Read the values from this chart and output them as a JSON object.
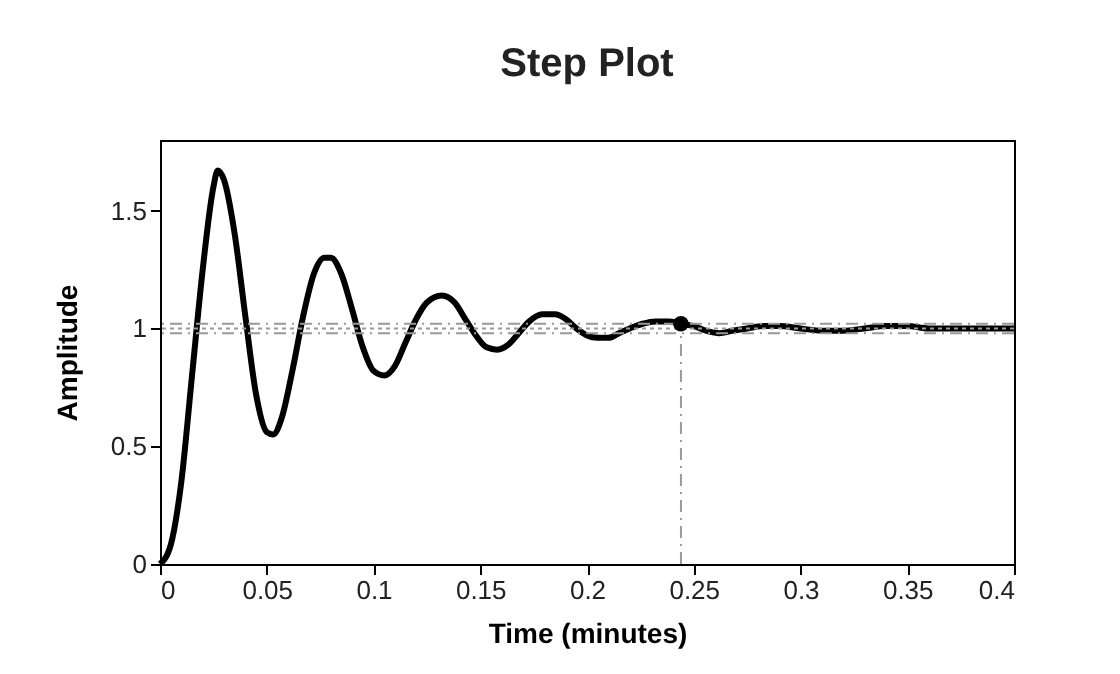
{
  "chart_data": {
    "type": "line",
    "title": "Step Plot",
    "xlabel": "Time (minutes)",
    "ylabel": "Amplitude",
    "xlim": [
      0,
      0.4
    ],
    "xticks": [
      0,
      0.05,
      0.1,
      0.15,
      0.2,
      0.25,
      0.3,
      0.35,
      0.4
    ],
    "ylim": [
      0,
      1.8
    ],
    "yticks": [
      0,
      0.5,
      1,
      1.5
    ],
    "grid": false,
    "series": [
      {
        "color": "#000000",
        "line_style": "solid",
        "marker": "none",
        "x": [
          0,
          0.005,
          0.01,
          0.015,
          0.02,
          0.025,
          0.027,
          0.03,
          0.035,
          0.04,
          0.045,
          0.05,
          0.053,
          0.057,
          0.062,
          0.067,
          0.072,
          0.077,
          0.08,
          0.085,
          0.09,
          0.095,
          0.1,
          0.105,
          0.11,
          0.115,
          0.12,
          0.125,
          0.132,
          0.138,
          0.143,
          0.148,
          0.153,
          0.158,
          0.163,
          0.168,
          0.173,
          0.179,
          0.185,
          0.19,
          0.195,
          0.2,
          0.205,
          0.21,
          0.215,
          0.22,
          0.226,
          0.232,
          0.238,
          0.244,
          0.25,
          0.256,
          0.262,
          0.268,
          0.275,
          0.283,
          0.29,
          0.3,
          0.31,
          0.32,
          0.33,
          0.34,
          0.35,
          0.36,
          0.37,
          0.38,
          0.39,
          0.4
        ],
        "values": [
          0,
          0.08,
          0.35,
          0.8,
          1.25,
          1.6,
          1.67,
          1.63,
          1.4,
          1.05,
          0.72,
          0.56,
          0.55,
          0.62,
          0.82,
          1.05,
          1.23,
          1.3,
          1.3,
          1.23,
          1.08,
          0.92,
          0.82,
          0.8,
          0.84,
          0.94,
          1.04,
          1.11,
          1.14,
          1.11,
          1.04,
          0.97,
          0.92,
          0.91,
          0.93,
          0.98,
          1.03,
          1.06,
          1.06,
          1.04,
          1.0,
          0.97,
          0.96,
          0.96,
          0.98,
          1.0,
          1.02,
          1.03,
          1.03,
          1.02,
          1.01,
          0.99,
          0.98,
          0.99,
          1.0,
          1.01,
          1.01,
          1.0,
          0.99,
          0.99,
          1.0,
          1.01,
          1.01,
          1.0,
          1.0,
          1.0,
          1.0,
          1.0
        ]
      },
      {
        "type": "scatter",
        "color": "#000000",
        "marker": "circle",
        "x": [
          0.244
        ],
        "values": [
          1.02
        ]
      }
    ],
    "ref_lines": [
      {
        "axis": "y",
        "value": 1.02,
        "color": "#999999",
        "line_style": "dashed"
      },
      {
        "axis": "y",
        "value": 0.98,
        "color": "#999999",
        "line_style": "dashed"
      },
      {
        "axis": "y",
        "value": 1,
        "color": "#999999",
        "line_style": "dotted"
      },
      {
        "axis": "x",
        "value": 0.244,
        "color": "#999999",
        "line_style": "dashed"
      }
    ]
  }
}
